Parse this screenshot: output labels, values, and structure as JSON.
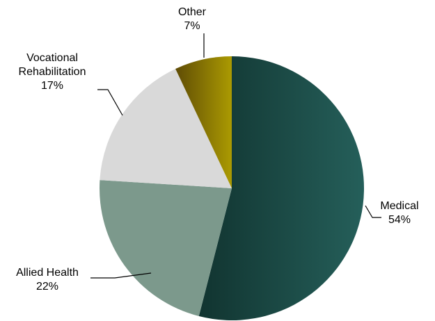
{
  "chart_data": {
    "type": "pie",
    "title": "",
    "start_angle_deg": 0,
    "direction": "clockwise",
    "legend": "none",
    "slices": [
      {
        "name": "Medical",
        "value": 54,
        "value_label": "54%",
        "label_lines": [
          "Medical"
        ],
        "gradient": [
          "#113430",
          "#255f5a"
        ]
      },
      {
        "name": "Allied Health",
        "value": 22,
        "value_label": "22%",
        "label_lines": [
          "Allied Health"
        ],
        "gradient": [
          "#7c998c",
          "#7c998c"
        ]
      },
      {
        "name": "Vocational Rehabilitation",
        "value": 17,
        "value_label": "17%",
        "label_lines": [
          "Vocational",
          "Rehabilitation"
        ],
        "gradient": [
          "#d9d9d9",
          "#d9d9d9"
        ]
      },
      {
        "name": "Other",
        "value": 7,
        "value_label": "7%",
        "label_lines": [
          "Other"
        ],
        "gradient": [
          "#5f4c05",
          "#ab9a02"
        ]
      }
    ]
  }
}
